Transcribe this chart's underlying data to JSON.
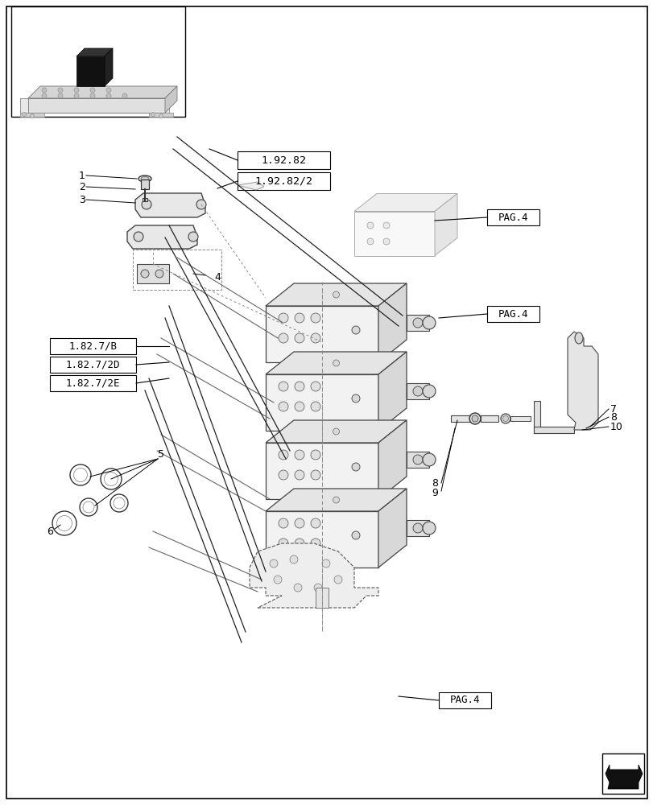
{
  "figsize": [
    8.12,
    10.0
  ],
  "dpi": 100,
  "bg_color": "#ffffff",
  "labels": {
    "ref_1": "1.92.82",
    "ref_2": "1.92.82/2",
    "ref_3": "1.82.7/B",
    "ref_4": "1.82.7/2D",
    "ref_5": "1.82.7/2E",
    "pag4": "PAG.4"
  }
}
